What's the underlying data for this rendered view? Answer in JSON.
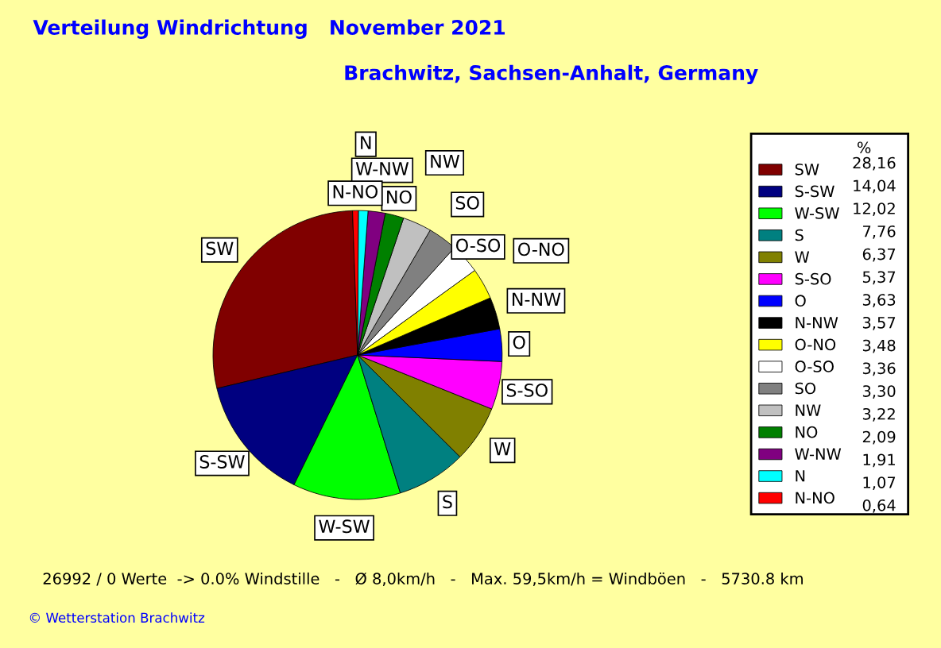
{
  "chart_data": {
    "type": "pie",
    "title": "Verteilung Windrichtung   November 2021",
    "subtitle": "Brachwitz, Sachsen-Anhalt, Germany",
    "legend_title": "%",
    "legend": "right",
    "categories": [
      "SW",
      "S-SW",
      "W-SW",
      "S",
      "W",
      "S-SO",
      "O",
      "N-NW",
      "O-NO",
      "O-SO",
      "SO",
      "NW",
      "NO",
      "W-NW",
      "N",
      "N-NO"
    ],
    "values": [
      28.16,
      14.04,
      12.02,
      7.76,
      6.37,
      5.37,
      3.63,
      3.57,
      3.48,
      3.36,
      3.3,
      3.22,
      2.09,
      1.91,
      1.07,
      0.64
    ],
    "value_labels": [
      "28,16",
      "14,04",
      "12,02",
      "7,76",
      "6,37",
      "5,37",
      "3,63",
      "3,57",
      "3,48",
      "3,36",
      "3,30",
      "3,22",
      "2,09",
      "1,91",
      "1,07",
      "0,64"
    ],
    "colors": [
      "#800000",
      "#000080",
      "#00ff00",
      "#008080",
      "#808000",
      "#ff00ff",
      "#0000ff",
      "#000000",
      "#ffff00",
      "#ffffff",
      "#808080",
      "#c0c0c0",
      "#008000",
      "#800080",
      "#00ffff",
      "#ff0000"
    ],
    "annotations": [
      "26992 / 0 Werte  -> 0.0% Windstille   -   Ø 8,0km/h   -   Max. 59,5km/h = Windböen   -   5730.8 km",
      "© Wetterstation Brachwitz"
    ]
  }
}
